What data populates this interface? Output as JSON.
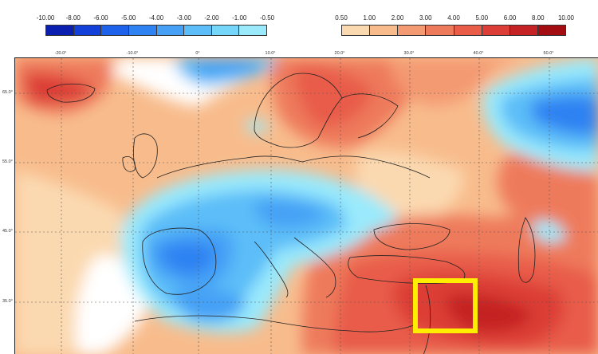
{
  "legend": {
    "negative": {
      "labels": [
        "-10.00",
        "-8.00",
        "-6.00",
        "-5.00",
        "-4.00",
        "-3.00",
        "-2.00",
        "-1.00",
        "-0.50"
      ],
      "colors": [
        "#0a1fb0",
        "#1240d8",
        "#1e62ec",
        "#2f82f2",
        "#45a0f6",
        "#5cbdf8",
        "#75d6fa",
        "#9aeafc"
      ]
    },
    "positive": {
      "labels": [
        "0.50",
        "1.00",
        "2.00",
        "3.00",
        "4.00",
        "5.00",
        "6.00",
        "8.00",
        "10.00"
      ],
      "colors": [
        "#fbd9b0",
        "#f8bc8c",
        "#f49a72",
        "#ee7a5c",
        "#e85c48",
        "#dc3d36",
        "#c42224",
        "#a30d12"
      ]
    }
  },
  "map": {
    "lon_labels": [
      "-20.0°",
      "-10.0°",
      "0°",
      "10.0°",
      "20.0°",
      "30.0°",
      "40.0°",
      "50.0°"
    ],
    "lat_labels": [
      "65.0°",
      "55.0°",
      "45.0°",
      "35.0°"
    ],
    "highlight_color": "#ffee00"
  }
}
